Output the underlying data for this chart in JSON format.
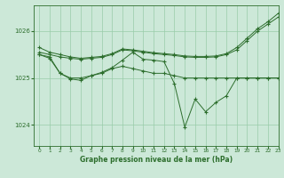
{
  "background_color": "#cce8d8",
  "plot_bg_color": "#cce8d8",
  "grid_color": "#99ccaa",
  "line_color": "#2d6e2d",
  "title": "Graphe pression niveau de la mer (hPa)",
  "xlim": [
    -0.5,
    23
  ],
  "ylim": [
    1023.55,
    1026.55
  ],
  "yticks": [
    1024,
    1025,
    1026
  ],
  "xticks": [
    0,
    1,
    2,
    3,
    4,
    5,
    6,
    7,
    8,
    9,
    10,
    11,
    12,
    13,
    14,
    15,
    16,
    17,
    18,
    19,
    20,
    21,
    22,
    23
  ],
  "series": [
    {
      "x": [
        0,
        1,
        2,
        3,
        4,
        5,
        6,
        7,
        8,
        9,
        10,
        11,
        12,
        13,
        14,
        15,
        16,
        17,
        18,
        19,
        20,
        21,
        22,
        23
      ],
      "y": [
        1025.55,
        1025.5,
        1025.45,
        1025.42,
        1025.4,
        1025.42,
        1025.44,
        1025.5,
        1025.6,
        1025.58,
        1025.55,
        1025.52,
        1025.5,
        1025.48,
        1025.45,
        1025.44,
        1025.44,
        1025.45,
        1025.5,
        1025.6,
        1025.8,
        1026.0,
        1026.15,
        1026.3
      ]
    },
    {
      "x": [
        0,
        1,
        2,
        3,
        4,
        5,
        6,
        7,
        8,
        9,
        10,
        11,
        12,
        13,
        14,
        15,
        16,
        17,
        18,
        19,
        20,
        21,
        22,
        23
      ],
      "y": [
        1025.65,
        1025.55,
        1025.5,
        1025.45,
        1025.42,
        1025.44,
        1025.46,
        1025.52,
        1025.62,
        1025.6,
        1025.57,
        1025.54,
        1025.52,
        1025.5,
        1025.47,
        1025.46,
        1025.46,
        1025.47,
        1025.52,
        1025.65,
        1025.85,
        1026.05,
        1026.2,
        1026.38
      ]
    },
    {
      "x": [
        0,
        1,
        2,
        3,
        4,
        5,
        6,
        7,
        8,
        9,
        10,
        11,
        12,
        13,
        14,
        15,
        16,
        17,
        18,
        19,
        20,
        21,
        22,
        23
      ],
      "y": [
        1025.5,
        1025.45,
        1025.1,
        1025.0,
        1025.0,
        1025.05,
        1025.1,
        1025.2,
        1025.25,
        1025.2,
        1025.15,
        1025.1,
        1025.1,
        1025.05,
        1025.0,
        1025.0,
        1025.0,
        1025.0,
        1025.0,
        1025.0,
        1025.0,
        1025.0,
        1025.0,
        1025.0
      ]
    },
    {
      "x": [
        0,
        1,
        2,
        3,
        4,
        5,
        6,
        7,
        8,
        9,
        10,
        11,
        12,
        13,
        14,
        15,
        16,
        17,
        18,
        19,
        20,
        21,
        22,
        23
      ],
      "y": [
        1025.5,
        1025.42,
        1025.1,
        1024.98,
        1024.95,
        1025.05,
        1025.12,
        1025.22,
        1025.38,
        1025.55,
        1025.4,
        1025.38,
        1025.35,
        1024.88,
        1023.95,
        1024.55,
        1024.28,
        1024.48,
        1024.62,
        1025.0,
        1025.0,
        1025.0,
        1025.0,
        1025.0
      ]
    }
  ]
}
